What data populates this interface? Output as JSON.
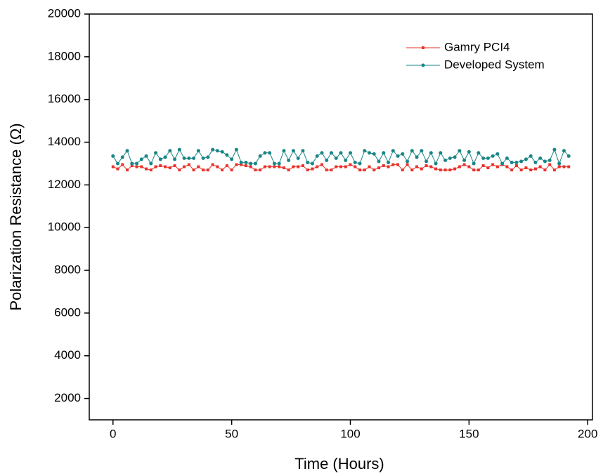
{
  "chart_data": {
    "type": "line",
    "x_label": "Time (Hours)",
    "y_label": "Polarization Resistance (Ω)",
    "x": [
      0,
      2,
      4,
      6,
      8,
      10,
      12,
      14,
      16,
      18,
      20,
      22,
      24,
      26,
      28,
      30,
      32,
      34,
      36,
      38,
      40,
      42,
      44,
      46,
      48,
      50,
      52,
      54,
      56,
      58,
      60,
      62,
      64,
      66,
      68,
      70,
      72,
      74,
      76,
      78,
      80,
      82,
      84,
      86,
      88,
      90,
      92,
      94,
      96,
      98,
      100,
      102,
      104,
      106,
      108,
      110,
      112,
      114,
      116,
      118,
      120,
      122,
      124,
      126,
      128,
      130,
      132,
      134,
      136,
      138,
      140,
      142,
      144,
      146,
      148,
      150,
      152,
      154,
      156,
      158,
      160,
      162,
      164,
      166,
      168,
      170,
      172,
      174,
      176,
      178,
      180,
      182,
      184,
      186,
      188,
      190,
      192
    ],
    "series": [
      {
        "name": "Gamry PCI4",
        "color": "#e8322a",
        "marker": "square",
        "values": [
          12850,
          12750,
          12950,
          12700,
          12900,
          12850,
          12850,
          12750,
          12700,
          12850,
          12900,
          12850,
          12800,
          12900,
          12700,
          12850,
          12950,
          12700,
          12850,
          12700,
          12700,
          12950,
          12850,
          12700,
          12900,
          12700,
          12950,
          12950,
          12900,
          12850,
          12700,
          12700,
          12850,
          12850,
          12850,
          12850,
          12800,
          12700,
          12850,
          12850,
          12900,
          12700,
          12750,
          12850,
          12950,
          12700,
          12700,
          12850,
          12850,
          12850,
          12950,
          12850,
          12700,
          12700,
          12850,
          12700,
          12800,
          12900,
          12850,
          12950,
          12950,
          12700,
          12950,
          12700,
          12850,
          12750,
          12900,
          12850,
          12750,
          12700,
          12700,
          12700,
          12750,
          12850,
          12950,
          12850,
          12700,
          12700,
          12900,
          12800,
          12950,
          12850,
          12950,
          12850,
          12700,
          12900,
          12700,
          12800,
          12700,
          12750,
          12850,
          12700,
          12950,
          12700,
          12850,
          12850,
          12850
        ]
      },
      {
        "name": "Developed System",
        "color": "#1a8585",
        "marker": "circle",
        "values": [
          13350,
          13000,
          13300,
          13600,
          13000,
          13000,
          13200,
          13350,
          13000,
          13500,
          13200,
          13300,
          13600,
          13200,
          13650,
          13250,
          13250,
          13250,
          13600,
          13250,
          13300,
          13650,
          13600,
          13550,
          13400,
          13200,
          13650,
          13050,
          13050,
          13000,
          13000,
          13350,
          13500,
          13500,
          13000,
          13000,
          13600,
          13150,
          13600,
          13250,
          13600,
          13050,
          13000,
          13350,
          13500,
          13150,
          13500,
          13250,
          13500,
          13150,
          13500,
          13050,
          13000,
          13600,
          13500,
          13450,
          13100,
          13500,
          13050,
          13600,
          13350,
          13450,
          13100,
          13600,
          13300,
          13600,
          13100,
          13500,
          13000,
          13500,
          13150,
          13250,
          13300,
          13600,
          13150,
          13550,
          13000,
          13500,
          13250,
          13250,
          13350,
          13450,
          13000,
          13250,
          13050,
          13050,
          13100,
          13200,
          13350,
          13050,
          13250,
          13100,
          13150,
          13650,
          13000,
          13600,
          13350
        ]
      }
    ],
    "xlim": [
      -10,
      202
    ],
    "xticks": [
      0,
      50,
      100,
      150,
      200
    ],
    "ylim": [
      1000,
      20000
    ],
    "yticks": [
      2000,
      4000,
      6000,
      8000,
      10000,
      12000,
      14000,
      16000,
      18000,
      20000
    ],
    "grid": false,
    "legend": "upper right"
  }
}
